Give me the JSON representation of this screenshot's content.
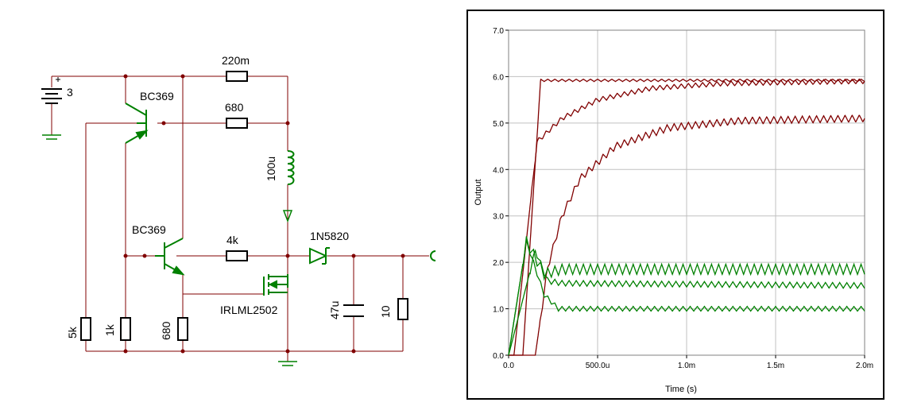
{
  "schematic": {
    "battery_value": "3",
    "q1_label": "BC369",
    "q2_label": "BC369",
    "r_220m": "220m",
    "r_680_top": "680",
    "inductor_value": "100u",
    "r_4k": "4k",
    "diode_label": "1N5820",
    "mosfet_label": "IRLML2502",
    "cap_value": "47u",
    "r_10": "10",
    "r_5k": "5k",
    "r_1k": "1k",
    "r_680_bottom": "680"
  },
  "chart_data": {
    "type": "line",
    "xlabel": "Time (s)",
    "ylabel": "Output",
    "xlim": [
      0,
      0.002
    ],
    "ylim": [
      0,
      7
    ],
    "x_ticks": [
      "0.0",
      "500.0u",
      "1.0m",
      "1.5m",
      "2.0m"
    ],
    "y_ticks": [
      "0.0",
      "1.0",
      "2.0",
      "3.0",
      "4.0",
      "5.0",
      "6.0",
      "7.0"
    ],
    "grid": true,
    "colors": {
      "red": "#800000",
      "green": "#008000"
    },
    "series": [
      {
        "color": "red",
        "start": 8e-05,
        "x": [
          8e-05,
          0.00018,
          0.00025,
          0.002
        ],
        "y": [
          0,
          5.92,
          5.92,
          5.92
        ],
        "ripple": 0.05
      },
      {
        "color": "red",
        "start": 3e-05,
        "x": [
          3e-05,
          0.00016,
          0.0003,
          0.0005,
          0.0008,
          0.0012,
          0.002
        ],
        "y": [
          0,
          4.6,
          5.1,
          5.5,
          5.75,
          5.85,
          5.9
        ],
        "ripple": 0.1
      },
      {
        "color": "red",
        "start": 0.00015,
        "x": [
          0.00015,
          0.00022,
          0.0003,
          0.0004,
          0.0006,
          0.0009,
          0.0013,
          0.002
        ],
        "y": [
          0,
          1.9,
          3.0,
          3.8,
          4.5,
          4.9,
          5.05,
          5.1
        ],
        "ripple": 0.15
      },
      {
        "color": "green",
        "start": 0,
        "x": [
          0,
          0.0001,
          0.0002,
          0.0003,
          0.002
        ],
        "y": [
          0,
          2.45,
          1.75,
          1.85,
          1.85
        ],
        "ripple": 0.22
      },
      {
        "color": "green",
        "start": 0,
        "x": [
          0,
          0.00015,
          0.00022,
          0.0003,
          0.002
        ],
        "y": [
          0,
          2.25,
          1.6,
          1.55,
          1.5
        ],
        "ripple": 0.12
      },
      {
        "color": "green",
        "start": 0,
        "x": [
          0,
          0.0001,
          0.0002,
          0.00028,
          0.002
        ],
        "y": [
          0,
          2.45,
          1.3,
          1.0,
          1.0
        ],
        "ripple": 0.1
      }
    ]
  }
}
